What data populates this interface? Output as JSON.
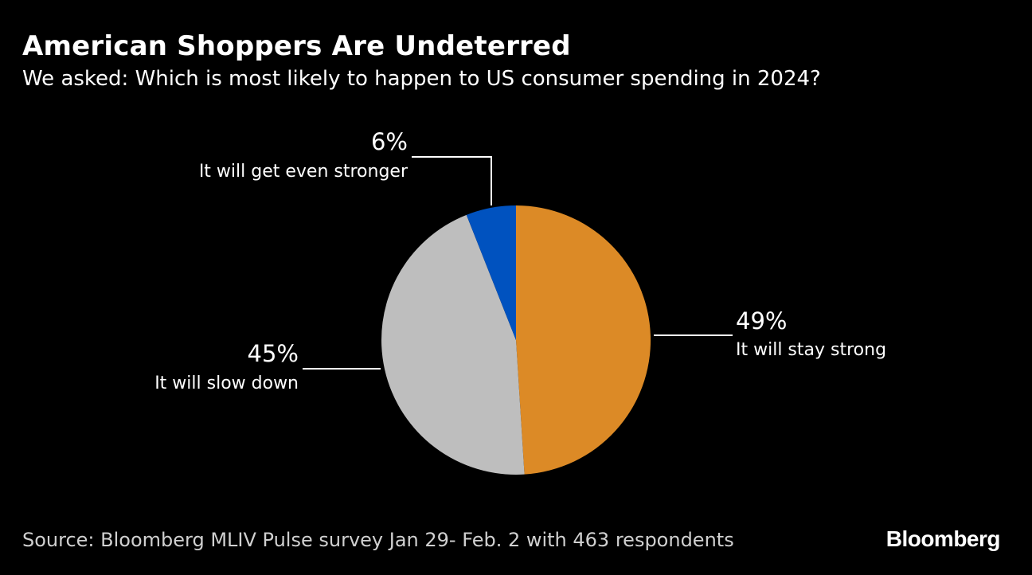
{
  "title": "American Shoppers Are Undeterred",
  "subtitle": "We asked: Which is most likely to happen to US consumer spending in 2024?",
  "source": "Source: Bloomberg MLIV Pulse survey Jan 29- Feb. 2 with 463 respondents",
  "logo": "Bloomberg",
  "chart_data": {
    "type": "pie",
    "slices": [
      {
        "label": "It will stay strong",
        "value": 49,
        "value_label": "49%",
        "color": "#DC8A26"
      },
      {
        "label": "It will slow down",
        "value": 45,
        "value_label": "45%",
        "color": "#BEBEBE"
      },
      {
        "label": "It will get even stronger",
        "value": 6,
        "value_label": "6%",
        "color": "#0052BF"
      }
    ]
  }
}
